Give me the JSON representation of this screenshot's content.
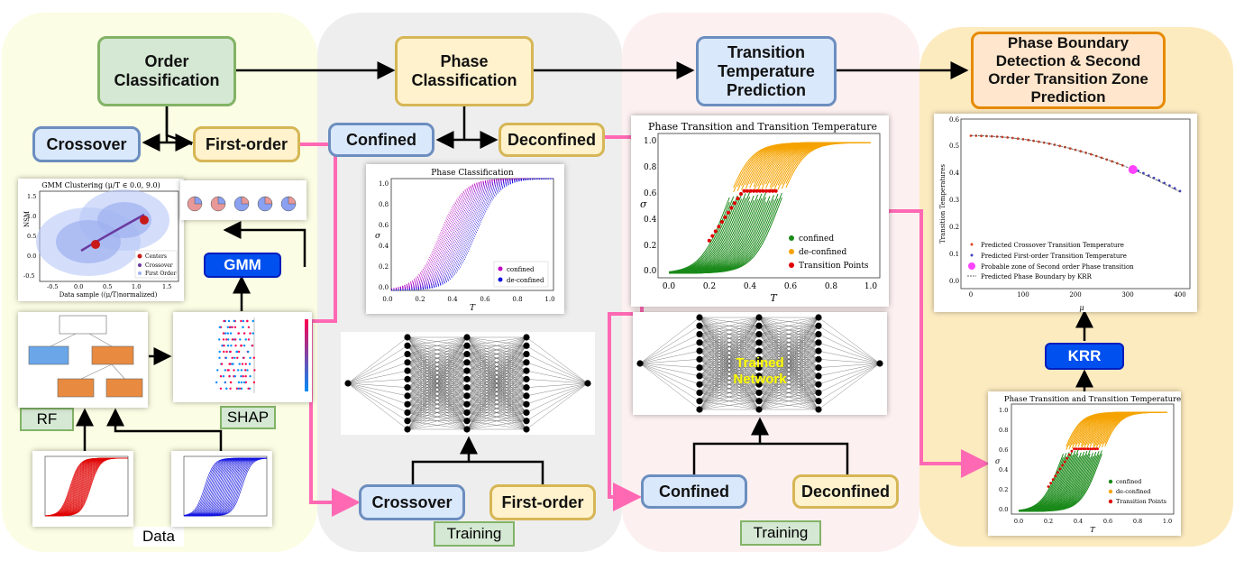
{
  "stages": {
    "order": "Order Classification",
    "phase": "Phase Classification",
    "temperature": "Transition Temperature Prediction",
    "boundary": "Phase Boundary Detection & Second Order Transition Zone Prediction"
  },
  "order_panel": {
    "crossover": "Crossover",
    "first_order": "First-order",
    "gmm": "GMM",
    "rf": "RF",
    "shap": "SHAP",
    "data": "Data",
    "gmm_plot": {
      "title": "GMM Clustering (μ/T ∈ 0.0, 9.0)",
      "ylabel": "NSM",
      "xlabel": "Data sample ((μ/T)normalized)",
      "legend": [
        "Centers",
        "Crossover",
        "First Order"
      ],
      "xticks": [
        "-0.5",
        "0.0",
        "0.5",
        "1.0",
        "1.5"
      ],
      "yticks": [
        "1.5",
        "1.0",
        "0.5",
        "0.0",
        "-0.5"
      ]
    }
  },
  "phase_panel": {
    "confined": "Confined",
    "deconfined": "Deconfined",
    "crossover": "Crossover",
    "first_order": "First-order",
    "training": "Training",
    "plot": {
      "title": "Phase Classification",
      "xlabel": "T",
      "ylabel": "σ",
      "legend": [
        "confined",
        "de-confined"
      ],
      "xticks": [
        "0.0",
        "0.2",
        "0.4",
        "0.6",
        "0.8",
        "1.0"
      ],
      "yticks": [
        "1.0",
        "0.8",
        "0.6",
        "0.4",
        "0.2",
        "0.0"
      ]
    }
  },
  "temp_panel": {
    "confined": "Confined",
    "deconfined": "Deconfined",
    "training": "Training",
    "trained_network": "Trained Network",
    "plot": {
      "title": "Phase Transition and Transition Temperature",
      "xlabel": "T",
      "ylabel": "σ",
      "legend": [
        "confined",
        "de-confined",
        "Transition Points"
      ],
      "xticks": [
        "0.0",
        "0.2",
        "0.4",
        "0.6",
        "0.8",
        "1.0"
      ],
      "yticks": [
        "1.0",
        "0.8",
        "0.6",
        "0.4",
        "0.2",
        "0.0"
      ]
    }
  },
  "boundary_panel": {
    "krr": "KRR",
    "top_plot": {
      "ylabel": "Transition Temperatures",
      "xlabel": "μ",
      "legend": [
        "Predicted Crossover Transition Temperature",
        "Predicted First-order Transition Temperature",
        "Probable zone of Second order Phase transition",
        "Predicted Phase Boundary by KRR"
      ],
      "xticks": [
        "0",
        "100",
        "200",
        "300",
        "400"
      ],
      "yticks": [
        "0.6",
        "0.5",
        "0.4",
        "0.3",
        "0.2",
        "0.1",
        "0.0"
      ]
    },
    "bottom_plot": {
      "title": "Phase Transition and Transition Temperature",
      "xlabel": "T",
      "ylabel": "σ",
      "legend": [
        "confined",
        "de-confined",
        "Transition Points"
      ],
      "xticks": [
        "0.0",
        "0.2",
        "0.4",
        "0.6",
        "0.8",
        "1.0"
      ],
      "yticks": [
        "1.0",
        "0.8",
        "0.6",
        "0.4",
        "0.2",
        "0.0"
      ]
    }
  },
  "colors": {
    "confined_green": "#1a8a1a",
    "deconfined_orange": "#f5a300",
    "transition_red": "#e00000",
    "pink_arrow": "#ff69b4",
    "magenta": "#c000c0",
    "blue": "#1010e0"
  }
}
